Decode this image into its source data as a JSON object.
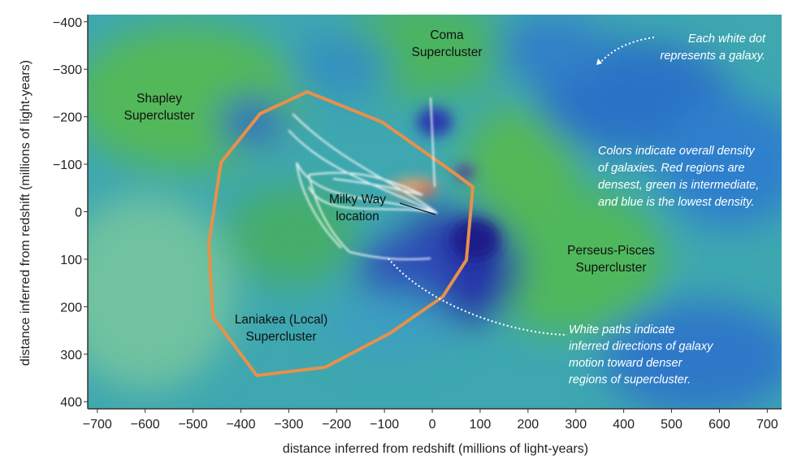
{
  "chart_data": {
    "type": "map",
    "x_label": "distance inferred from redshift (millions of light-years)",
    "y_label": "distance inferred from redshift (millions of light-years)",
    "xlim": [
      -720,
      730
    ],
    "ylim": [
      -415,
      415
    ],
    "y_inverted": true,
    "xticks": [
      {
        "value": -700,
        "label": "−700"
      },
      {
        "value": -600,
        "label": "−600"
      },
      {
        "value": -500,
        "label": "−500"
      },
      {
        "value": -400,
        "label": "−400"
      },
      {
        "value": -300,
        "label": "−300"
      },
      {
        "value": -200,
        "label": "−200"
      },
      {
        "value": -100,
        "label": "−100"
      },
      0,
      100,
      200,
      300,
      400,
      500,
      600,
      700
    ],
    "yticks": [
      {
        "value": -400,
        "label": "−400"
      },
      {
        "value": -300,
        "label": "−300"
      },
      {
        "value": -200,
        "label": "−200"
      },
      {
        "value": -100,
        "label": "−100"
      },
      0,
      100,
      200,
      300,
      400
    ],
    "labels": [
      [
        "Coma",
        "Supercluster"
      ],
      [
        "Shapley",
        "Supercluster"
      ],
      [
        "Milky Way",
        "location"
      ],
      [
        "Perseus-Pisces",
        "Supercluster"
      ],
      [
        "Laniakea (Local)",
        "Supercluster"
      ]
    ],
    "notes": [
      [
        "Each white dot",
        "represents a galaxy."
      ],
      [
        "Colors indicate overall density",
        "of galaxies. Red regions are",
        "densest, green is intermediate,",
        "and blue is the lowest density."
      ],
      [
        "White paths indicate",
        "inferred directions of galaxy",
        "motion toward denser",
        "regions of supercluster."
      ]
    ]
  }
}
